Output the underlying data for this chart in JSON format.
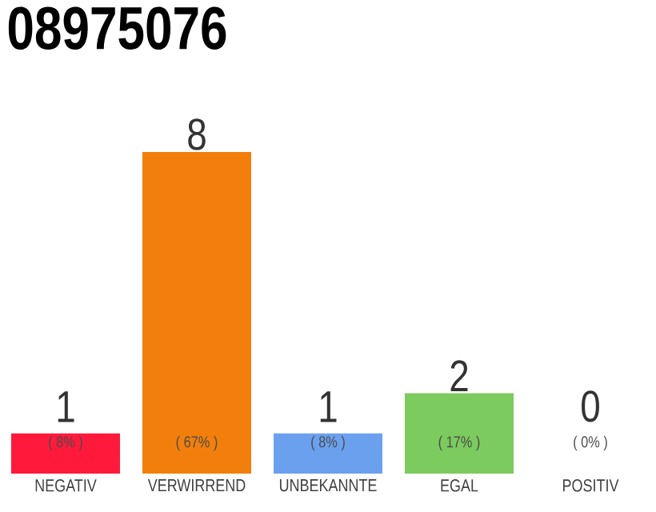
{
  "chart_data": {
    "type": "bar",
    "title": "08975076",
    "categories": [
      "NEGATIV",
      "VERWIRREND",
      "UNBEKANNTE",
      "EGAL",
      "POSITIV"
    ],
    "values": [
      1,
      8,
      1,
      2,
      0
    ],
    "colors": [
      "#ff1a3c",
      "#f27f0c",
      "#6aa0ee",
      "#7ccb5e",
      "#9e9e9e"
    ],
    "ylim": [
      0,
      8
    ],
    "tick_labels": "x",
    "data_labels": true,
    "annotations": [
      "( 8% )",
      "( 67% )",
      "( 8% )",
      "( 17% )",
      "( 0% )"
    ]
  }
}
